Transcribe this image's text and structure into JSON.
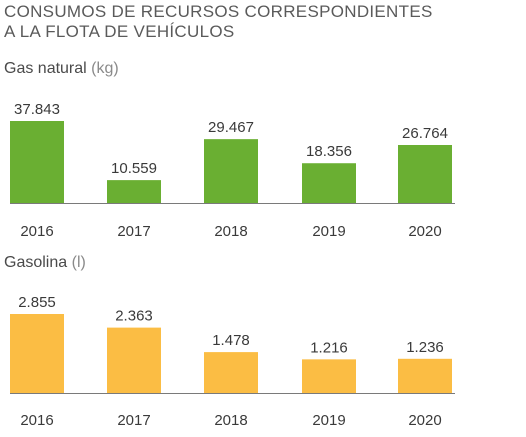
{
  "title": {
    "line1": "CONSUMOS DE RECURSOS CORRESPONDIENTES",
    "line2": "A LA FLOTA DE VEHÍCULOS"
  },
  "chart_data": [
    {
      "type": "bar",
      "title": "Gas natural",
      "unit": "(kg)",
      "categories": [
        "2016",
        "2017",
        "2018",
        "2019",
        "2020"
      ],
      "values": [
        37843,
        10559,
        29467,
        18356,
        26764
      ],
      "value_labels": [
        "37.843",
        "10.559",
        "29.467",
        "18.356",
        "26.764"
      ],
      "ylim": [
        0,
        37843
      ],
      "color": "#6aaf32",
      "grid": false
    },
    {
      "type": "bar",
      "title": "Gasolina",
      "unit": "(l)",
      "categories": [
        "2016",
        "2017",
        "2018",
        "2019",
        "2020"
      ],
      "values": [
        2855,
        2363,
        1478,
        1216,
        1236
      ],
      "value_labels": [
        "2.855",
        "2.363",
        "1.478",
        "1.216",
        "1.236"
      ],
      "ylim": [
        0,
        2855
      ],
      "color": "#fbbd44",
      "grid": false
    }
  ]
}
